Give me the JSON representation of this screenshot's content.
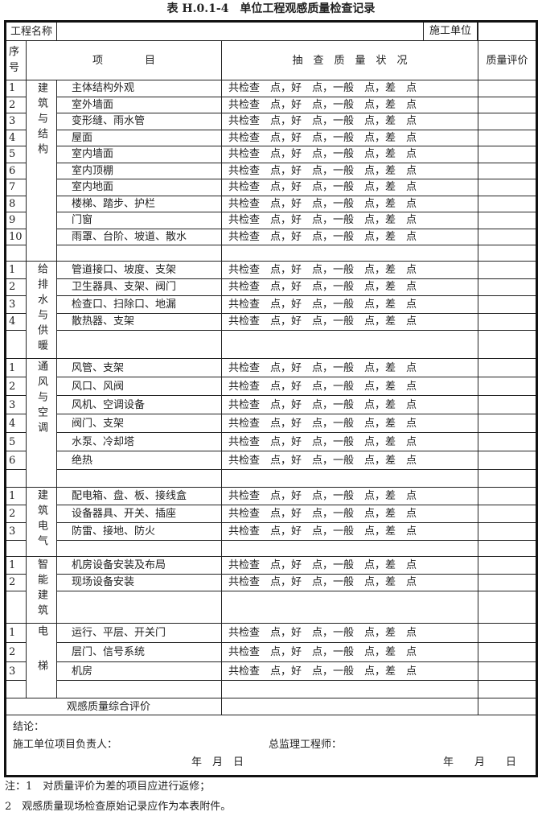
{
  "title": "表 H.0.1-4　单位工程观感质量检查记录",
  "header": {
    "project_name_label": "工程名称",
    "project_name_value": "",
    "contractor_label": "施工单位",
    "contractor_value": "",
    "seq_label": "序号",
    "item_label": "项　　　　目",
    "status_label": "抽　查　质　量　状　况",
    "rating_label": "质量评价"
  },
  "groups": [
    {
      "category": "建筑与结构",
      "items": [
        {
          "seq": "1",
          "name": "主体结构外观",
          "status": "共检查　点，好　点，一般　点，差　点"
        },
        {
          "seq": "2",
          "name": "室外墙面",
          "status": "共检查　点，好　点，一般　点，差　点"
        },
        {
          "seq": "3",
          "name": "变形缝、雨水管",
          "status": "共检查　点，好　点，一般　点，差　点"
        },
        {
          "seq": "4",
          "name": "屋面",
          "status": "共检查　点，好　点，一般　点，差　点"
        },
        {
          "seq": "5",
          "name": "室内墙面",
          "status": "共检查　点，好　点，一般　点，差　点"
        },
        {
          "seq": "6",
          "name": "室内顶棚",
          "status": "共检查　点，好　点，一般　点，差　点"
        },
        {
          "seq": "7",
          "name": "室内地面",
          "status": "共检查　点，好　点，一般　点，差　点"
        },
        {
          "seq": "8",
          "name": "楼梯、踏步、护栏",
          "status": "共检查　点，好　点，一般　点，差　点"
        },
        {
          "seq": "9",
          "name": "门窗",
          "status": "共检查　点，好　点，一般　点，差　点"
        },
        {
          "seq": "10",
          "name": "雨罩、台阶、坡道、散水",
          "status": "共检查　点，好　点，一般　点，差　点"
        }
      ]
    },
    {
      "category": "给排水与供暖",
      "items": [
        {
          "seq": "1",
          "name": "管道接口、坡度、支架",
          "status": "共检查　点，好　点，一般　点，差　点"
        },
        {
          "seq": "2",
          "name": "卫生器具、支架、阀门",
          "status": "共检查　点，好　点，一般　点，差　点"
        },
        {
          "seq": "3",
          "name": "检查口、扫除口、地漏",
          "status": "共检查　点，好　点，一般　点，差　点"
        },
        {
          "seq": "4",
          "name": "散热器、支架",
          "status": "共检查　点，好　点，一般　点，差　点"
        }
      ]
    },
    {
      "category": "通风与空调",
      "items": [
        {
          "seq": "1",
          "name": "风管、支架",
          "status": "共检查　点，好　点，一般　点，差　点"
        },
        {
          "seq": "2",
          "name": "风口、风阀",
          "status": "共检查　点，好　点，一般　点，差　点"
        },
        {
          "seq": "3",
          "name": "风机、空调设备",
          "status": "共检查　点，好　点，一般　点，差　点"
        },
        {
          "seq": "4",
          "name": "阀门、支架",
          "status": "共检查　点，好　点，一般　点，差　点"
        },
        {
          "seq": "5",
          "name": "水泵、冷却塔",
          "status": "共检查　点，好　点，一般　点，差　点"
        },
        {
          "seq": "6",
          "name": "绝热",
          "status": "共检查　点，好　点，一般　点，差　点"
        }
      ]
    },
    {
      "category": "建筑电气",
      "items": [
        {
          "seq": "1",
          "name": "配电箱、盘、板、接线盒",
          "status": "共检查　点，好　点，一般　点，差　点"
        },
        {
          "seq": "2",
          "name": "设备器具、开关、插座",
          "status": "共检查　点，好　点，一般　点，差　点"
        },
        {
          "seq": "3",
          "name": "防雷、接地、防火",
          "status": "共检查　点，好　点，一般　点，差　点"
        }
      ]
    },
    {
      "category": "智能建筑",
      "items": [
        {
          "seq": "1",
          "name": "机房设备安装及布局",
          "status": "共检查　点，好　点，一般　点，差　点"
        },
        {
          "seq": "2",
          "name": "现场设备安装",
          "status": "共检查　点，好　点，一般　点，差　点"
        }
      ]
    },
    {
      "category": "电梯",
      "items": [
        {
          "seq": "1",
          "name": "运行、平层、开关门",
          "status": "共检查　点，好　点，一般　点，差　点"
        },
        {
          "seq": "2",
          "name": "层门、信号系统",
          "status": "共检查　点，好　点，一般　点，差　点"
        },
        {
          "seq": "3",
          "name": "机房",
          "status": "共检查　点，好　点，一般　点，差　点"
        }
      ]
    }
  ],
  "overall_label": "观感质量综合评价",
  "conclusion": {
    "label": "结论：",
    "contractor_manager": "施工单位项目负责人：",
    "chief_supervisor": "总监理工程师：",
    "date_left": "年　月　日",
    "date_right": "年　　月　　日"
  },
  "notes": [
    "注：1　对质量评价为差的项目应进行返修；",
    "2　观感质量现场检查原始记录应作为本表附件。"
  ]
}
